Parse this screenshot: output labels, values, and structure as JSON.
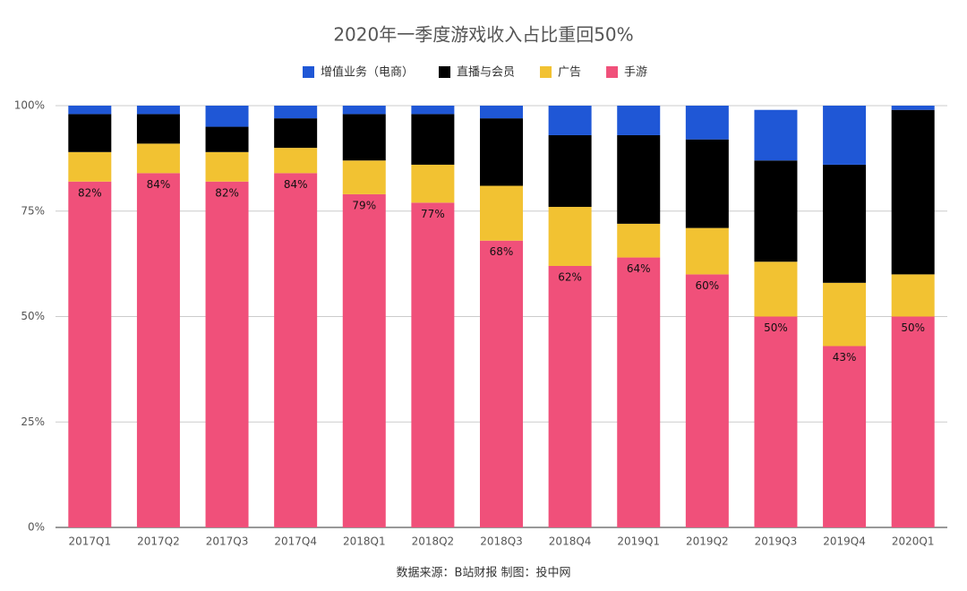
{
  "chart_data": {
    "type": "stacked_bar",
    "title": "2020年一季度游戏收入占比重回50%",
    "categories": [
      "2017Q1",
      "2017Q2",
      "2017Q3",
      "2017Q4",
      "2018Q1",
      "2018Q2",
      "2018Q3",
      "2018Q4",
      "2019Q1",
      "2019Q2",
      "2019Q3",
      "2019Q4",
      "2020Q1"
    ],
    "series": [
      {
        "name": "手游",
        "color": "#f0507a",
        "values": [
          82,
          84,
          82,
          84,
          79,
          77,
          68,
          62,
          64,
          60,
          50,
          43,
          50
        ],
        "value_labels": [
          "82%",
          "84%",
          "82%",
          "84%",
          "79%",
          "77%",
          "68%",
          "62%",
          "64%",
          "60%",
          "50%",
          "43%",
          "50%"
        ]
      },
      {
        "name": "广告",
        "color": "#f2c232",
        "values": [
          7,
          7,
          7,
          6,
          8,
          9,
          13,
          14,
          8,
          11,
          13,
          15,
          10
        ]
      },
      {
        "name": "直播与会员",
        "color": "#000000",
        "values": [
          9,
          7,
          6,
          7,
          11,
          12,
          16,
          17,
          21,
          21,
          24,
          28,
          39
        ]
      },
      {
        "name": "增值业务（电商）",
        "color": "#1f57d6",
        "values": [
          2,
          2,
          5,
          3,
          2,
          2,
          3,
          7,
          7,
          8,
          12,
          14,
          1
        ]
      }
    ],
    "legend_order": [
      "增值业务（电商）",
      "直播与会员",
      "广告",
      "手游"
    ],
    "ylim": [
      0,
      100
    ],
    "yticks": [
      {
        "value": 0,
        "label": "0%"
      },
      {
        "value": 25,
        "label": "25%"
      },
      {
        "value": 50,
        "label": "50%"
      },
      {
        "value": 75,
        "label": "75%"
      },
      {
        "value": 100,
        "label": "100%"
      }
    ],
    "grid": true,
    "legend": "top",
    "source": "数据来源：B站财报 制图：投中网"
  }
}
